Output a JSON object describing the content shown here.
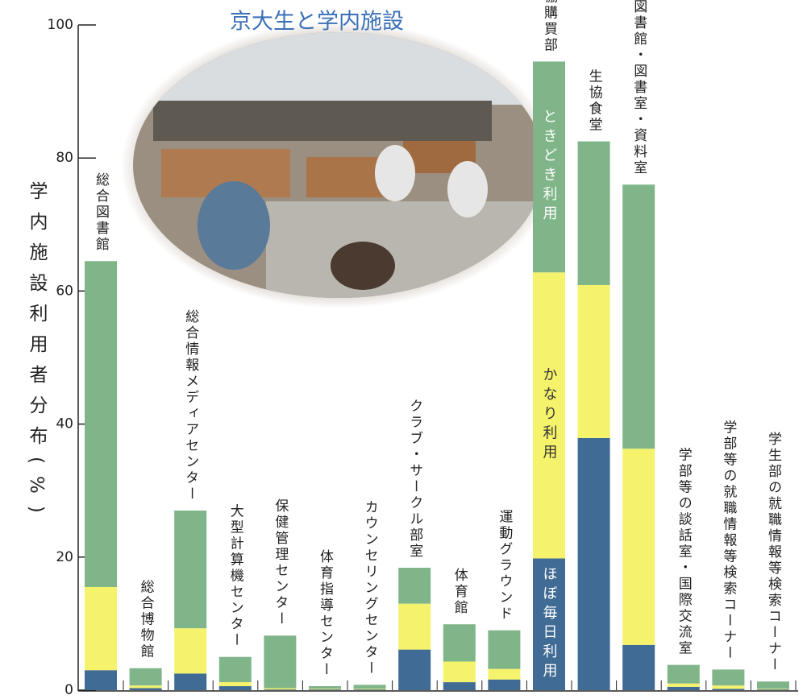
{
  "chart_data": {
    "type": "stacked-bar",
    "title": "京大生と学内施設",
    "y_label": "学内施設利用者分布(%)",
    "categories": [
      "総合図書館",
      "総合博物館",
      "総合情報メディアセンター",
      "大型計算機センター",
      "保健管理センター",
      "体育指導センター",
      "カウンセリングセンター",
      "クラブ・サークル部室",
      "体育館",
      "運動グラウンド",
      "協購買部",
      "生協食堂",
      "図書館・図書室・資料室",
      "学部等の談話室・国際交流室",
      "学部等の就職情報等検索コーナー",
      "学生部の就職情報等検索コーナー"
    ],
    "series": [
      {
        "name": "ほぼ毎日利用",
        "color": "#3f6b95",
        "values": [
          3,
          0.3,
          2.5,
          0.6,
          0.1,
          0.1,
          0.1,
          6.1,
          1.2,
          1.6,
          19.8,
          37.9,
          6.8,
          0.5,
          0.2,
          0.1
        ]
      },
      {
        "name": "かなり利用",
        "color": "#f5f26c",
        "values": [
          12.5,
          0.4,
          6.8,
          0.6,
          0.2,
          0.1,
          0.1,
          6.9,
          3.1,
          1.6,
          43,
          23,
          29.5,
          0.5,
          0.5,
          0.1
        ]
      },
      {
        "name": "ときどき利用",
        "color": "#80b589",
        "values": [
          49,
          2.6,
          17.7,
          3.8,
          7.9,
          0.4,
          0.6,
          5.4,
          5.6,
          5.8,
          31.7,
          21.6,
          39.7,
          2.8,
          2.4,
          1.1
        ]
      }
    ],
    "ylim": [
      0,
      100
    ],
    "yticks": [
      0,
      20,
      40,
      60,
      80,
      100
    ],
    "grid": false
  }
}
